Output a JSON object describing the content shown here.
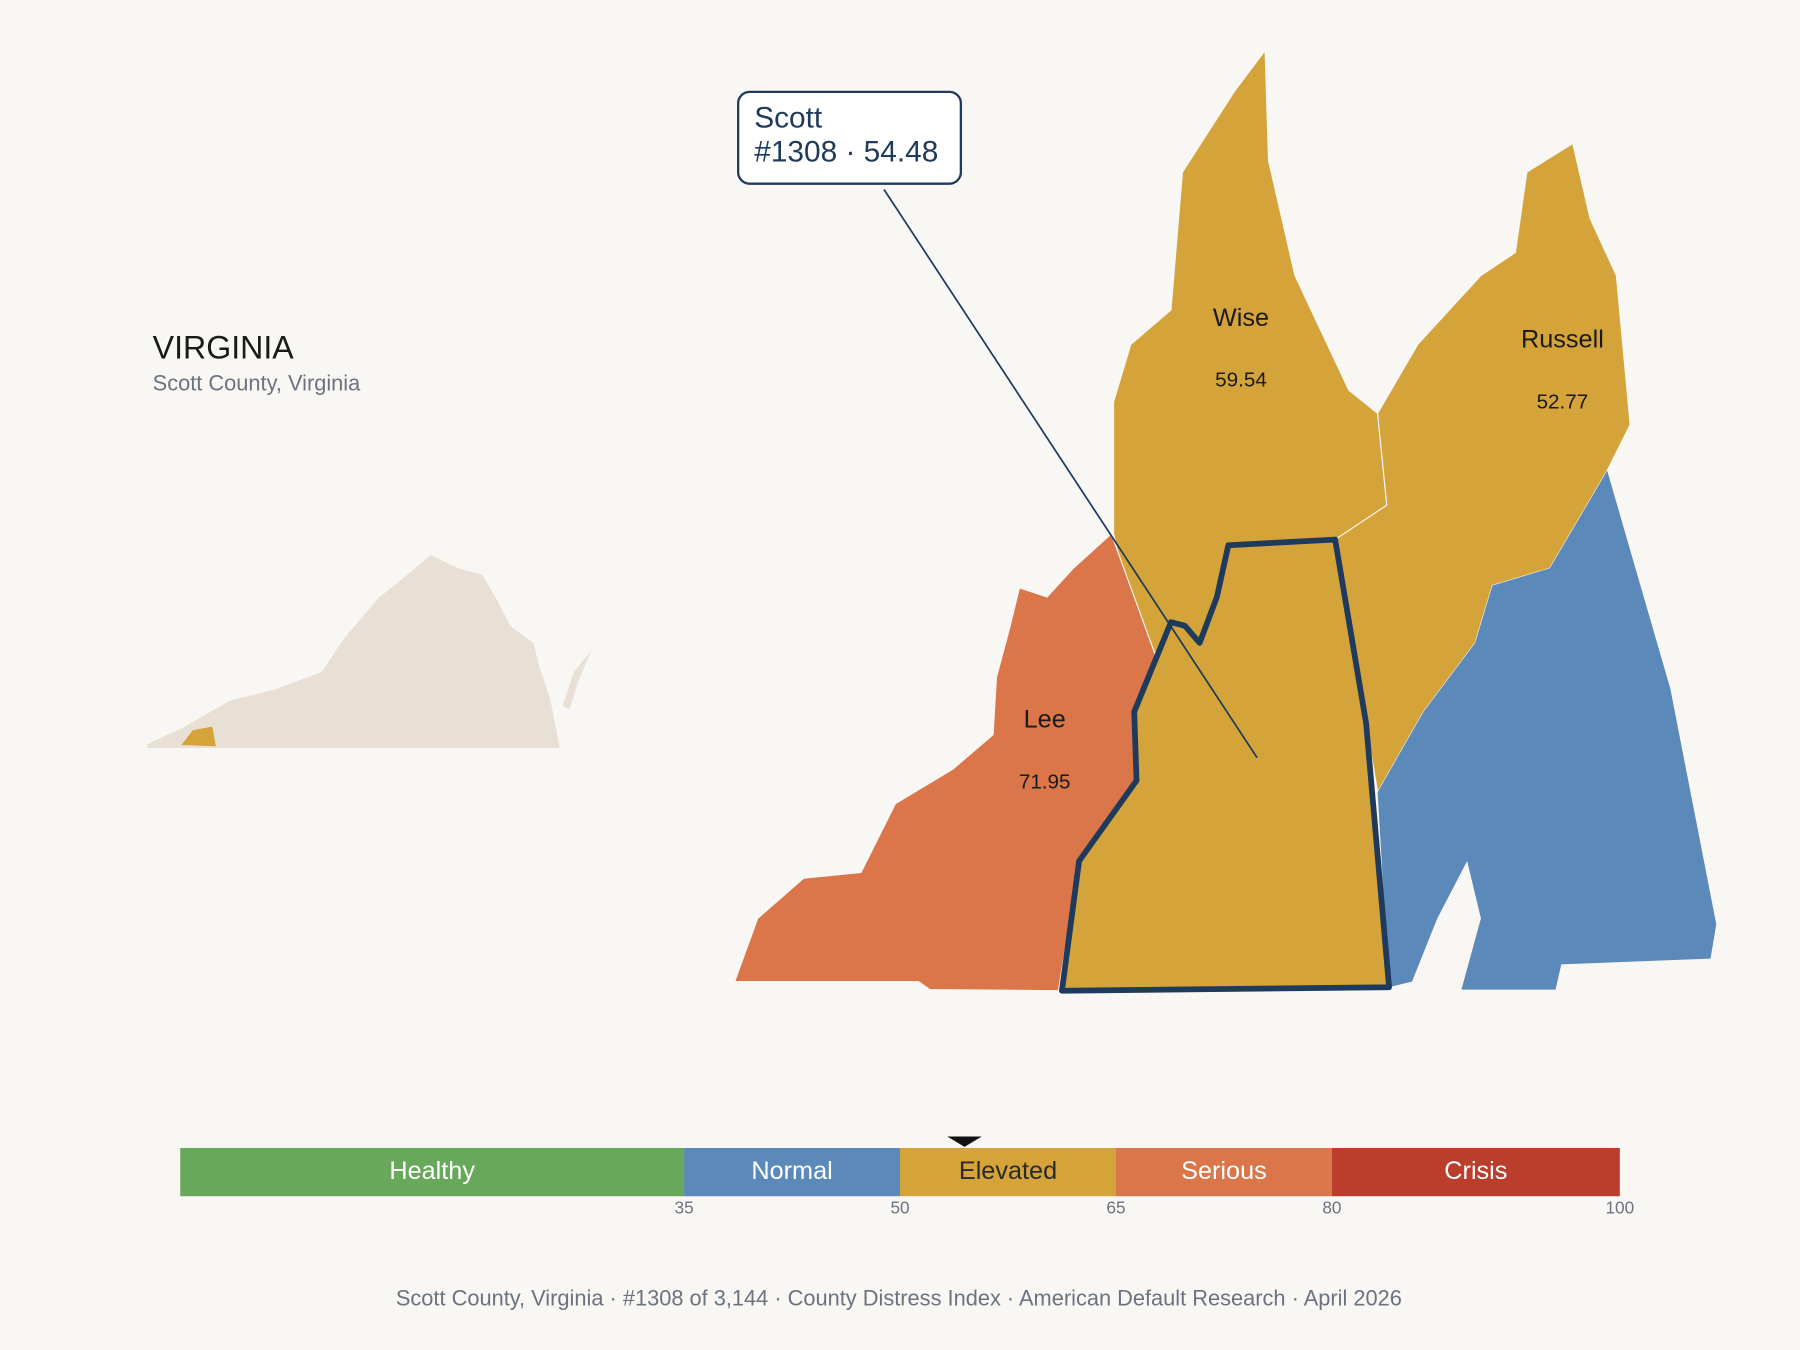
{
  "header": {
    "title": "VIRGINIA",
    "subtitle": "Scott County, Virginia"
  },
  "highlight": {
    "name": "Scott",
    "detail": "#1308 · 54.48",
    "score": 54.48
  },
  "counties": [
    {
      "name": "Wise",
      "score": 59.54
    },
    {
      "name": "Russell",
      "score": 52.77
    },
    {
      "name": "Lee",
      "score": 71.95
    }
  ],
  "legend": {
    "range": [
      0,
      100
    ],
    "ticks": [
      35,
      50,
      65,
      80,
      100
    ],
    "bands": [
      {
        "label": "Healthy",
        "color": "#68a85a",
        "text_color": "#ffffff"
      },
      {
        "label": "Normal",
        "color": "#5b8aba",
        "text_color": "#ffffff"
      },
      {
        "label": "Elevated",
        "color": "#d4a33a",
        "text_color": "#2a2a2a"
      },
      {
        "label": "Serious",
        "color": "#db754a",
        "text_color": "#ffffff"
      },
      {
        "label": "Crisis",
        "color": "#bb3d2c",
        "text_color": "#ffffff"
      }
    ]
  },
  "footer": "Scott County, Virginia  ·  #1308 of 3,144  ·  County Distress Index  ·  American Default Research  ·  April 2026"
}
